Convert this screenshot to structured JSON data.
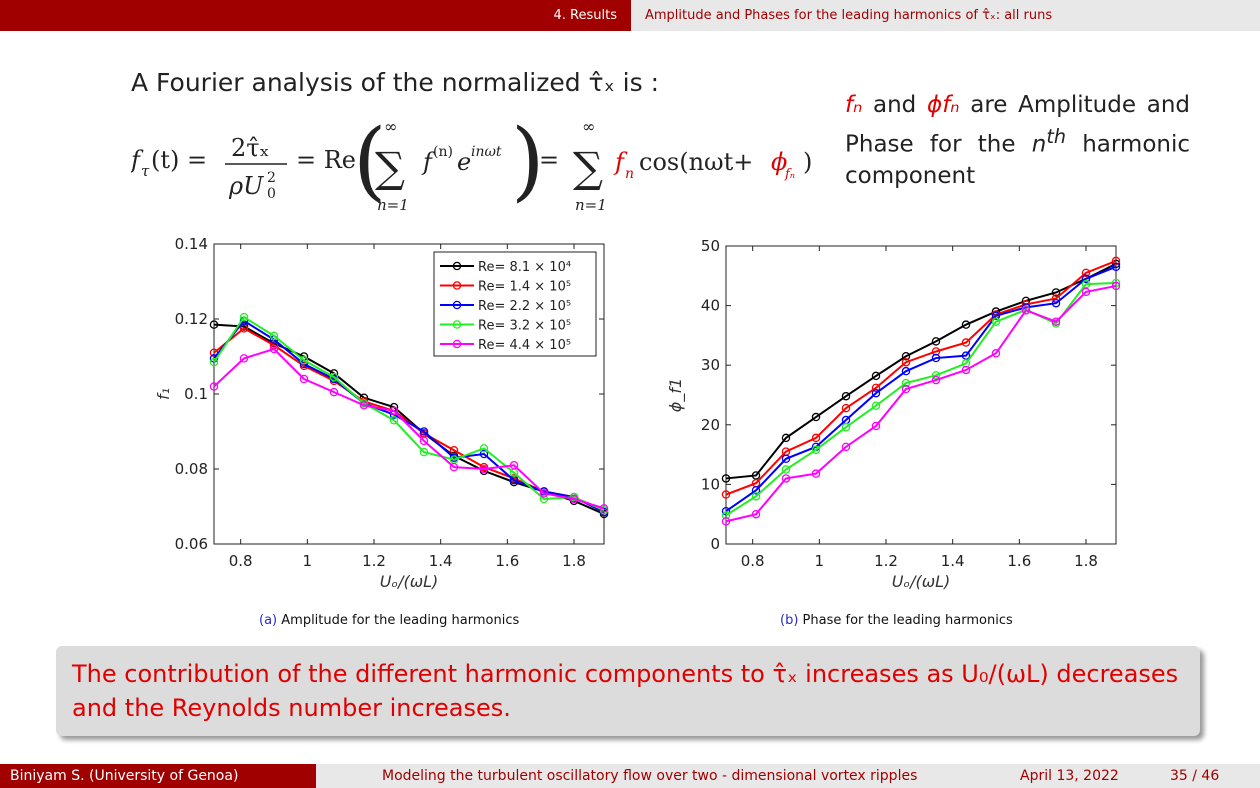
{
  "header": {
    "section": "4. Results",
    "frame_title": "Amplitude and Phases for the leading harmonics of τ̂ₓ: all runs"
  },
  "intro_text": "A Fourier analysis of the normalized τ̂ₓ is :",
  "formula": {
    "lhs": "f",
    "lhs_sub": "τ",
    "lhs_arg": "(t) =",
    "frac_num": "2τ̂ₓ",
    "frac_den": "ρU",
    "frac_den_sup": "2",
    "frac_den_sub": "0",
    "eq2": "= Re",
    "sum_top": "∞",
    "sum_bottom": "n=1",
    "term1": "f",
    "term1_sup": "(n)",
    "term1_exp": "e",
    "term1_exp_sup": "inωt",
    "eq3": "=",
    "term2_amp": "f",
    "term2_amp_sub": "n",
    "term2_cos": "cos(nωt+",
    "term2_phase": "ϕ",
    "term2_phase_sub": "fₙ",
    "term2_close": ")"
  },
  "side_note": {
    "fn": "fₙ",
    "and": "and",
    "phi": "ϕfₙ",
    "text1": "are Amplitude and Phase for the",
    "nth": "n",
    "nth_sup": "th",
    "text2": "harmonic component"
  },
  "captions": {
    "a_label": "(a)",
    "a_text": "Amplitude for the leading harmonics",
    "b_label": "(b)",
    "b_text": "Phase for the leading harmonics"
  },
  "conclusion": "The contribution of the different harmonic components to τ̂ₓ increases as U₀/(ωL) decreases and the Reynolds number increases.",
  "footer": {
    "author": "Biniyam S.  (University of Genoa)",
    "talk_title": "Modeling the turbulent oscillatory flow over two - dimensional vortex ripples",
    "date": "April 13, 2022",
    "page": "35 / 46"
  },
  "chart_data": [
    {
      "type": "line",
      "xlabel": "Uₒ/(ωL)",
      "ylabel": "f₁",
      "xlim": [
        0.72,
        1.89
      ],
      "ylim": [
        0.06,
        0.14
      ],
      "xticks": [
        0.8,
        1,
        1.2,
        1.4,
        1.6,
        1.8
      ],
      "xtick_labels": [
        "0.8",
        "1",
        "1.2",
        "1.4",
        "1.6",
        "1.8"
      ],
      "yticks": [
        0.06,
        0.08,
        0.1,
        0.12,
        0.14
      ],
      "ytick_labels": [
        "0.06",
        "0.08",
        "0.1",
        "0.12",
        "0.14"
      ],
      "grid": false,
      "legend": "top-right",
      "x": [
        0.72,
        0.81,
        0.9,
        0.99,
        1.08,
        1.17,
        1.26,
        1.35,
        1.44,
        1.53,
        1.62,
        1.71,
        1.8,
        1.89
      ],
      "series": [
        {
          "name": "Re= 8.1 × 10⁴",
          "color": "#000000",
          "values": [
            0.1185,
            0.118,
            0.1135,
            0.11,
            0.1055,
            0.099,
            0.0965,
            0.0895,
            0.0835,
            0.0795,
            0.0765,
            0.074,
            0.0715,
            0.068
          ]
        },
        {
          "name": "Re= 1.4 × 10⁵",
          "color": "#ff0000",
          "values": [
            0.111,
            0.1175,
            0.113,
            0.1075,
            0.1035,
            0.098,
            0.0955,
            0.0895,
            0.085,
            0.0805,
            0.0775,
            0.074,
            0.0725,
            0.0685
          ]
        },
        {
          "name": "Re= 2.2 × 10⁵",
          "color": "#0000ff",
          "values": [
            0.1095,
            0.1195,
            0.1145,
            0.108,
            0.104,
            0.0975,
            0.0945,
            0.09,
            0.083,
            0.084,
            0.077,
            0.074,
            0.0725,
            0.0685
          ]
        },
        {
          "name": "Re= 3.2 × 10⁵",
          "color": "#22ee22",
          "values": [
            0.1085,
            0.1205,
            0.1155,
            0.109,
            0.1045,
            0.0975,
            0.093,
            0.0845,
            0.0825,
            0.0855,
            0.079,
            0.072,
            0.0725,
            0.069
          ]
        },
        {
          "name": "Re= 4.4 × 10⁵",
          "color": "#ff00ff",
          "values": [
            0.102,
            0.1095,
            0.112,
            0.104,
            0.1005,
            0.097,
            0.0955,
            0.0875,
            0.0805,
            0.08,
            0.081,
            0.0735,
            0.072,
            0.0695
          ]
        }
      ]
    },
    {
      "type": "line",
      "xlabel": "Uₒ/(ωL)",
      "ylabel": "ϕ_f1",
      "xlim": [
        0.72,
        1.89
      ],
      "ylim": [
        0,
        50
      ],
      "xticks": [
        0.8,
        1,
        1.2,
        1.4,
        1.6,
        1.8
      ],
      "xtick_labels": [
        "0.8",
        "1",
        "1.2",
        "1.4",
        "1.6",
        "1.8"
      ],
      "yticks": [
        0,
        10,
        20,
        30,
        40,
        50
      ],
      "ytick_labels": [
        "0",
        "10",
        "20",
        "30",
        "40",
        "50"
      ],
      "grid": false,
      "x": [
        0.72,
        0.81,
        0.9,
        0.99,
        1.08,
        1.17,
        1.26,
        1.35,
        1.44,
        1.53,
        1.62,
        1.71,
        1.8,
        1.89
      ],
      "series": [
        {
          "name": "Re= 8.1 × 10⁴",
          "color": "#000000",
          "values": [
            11.0,
            11.5,
            17.8,
            21.3,
            24.8,
            28.2,
            31.5,
            34.0,
            36.8,
            39.0,
            40.8,
            42.2,
            44.5,
            47.0
          ]
        },
        {
          "name": "Re= 1.4 × 10⁵",
          "color": "#ff0000",
          "values": [
            8.3,
            10.2,
            15.5,
            17.8,
            22.8,
            26.2,
            30.5,
            32.3,
            33.8,
            38.5,
            40.2,
            41.2,
            45.5,
            47.5
          ]
        },
        {
          "name": "Re= 2.2 × 10⁵",
          "color": "#0000ff",
          "values": [
            5.5,
            9.0,
            14.3,
            16.3,
            20.8,
            25.3,
            29.0,
            31.2,
            31.6,
            38.3,
            39.7,
            40.4,
            44.5,
            46.5
          ]
        },
        {
          "name": "Re= 3.2 × 10⁵",
          "color": "#22ee22",
          "values": [
            4.8,
            8.0,
            12.5,
            15.8,
            19.6,
            23.2,
            27.0,
            28.3,
            30.3,
            37.3,
            39.3,
            37.0,
            43.6,
            43.8
          ]
        },
        {
          "name": "Re= 4.4 × 10⁵",
          "color": "#ff00ff",
          "values": [
            3.8,
            5.0,
            11.0,
            11.8,
            16.3,
            19.8,
            26.0,
            27.5,
            29.2,
            32.0,
            39.2,
            37.3,
            42.3,
            43.3
          ]
        }
      ]
    }
  ]
}
